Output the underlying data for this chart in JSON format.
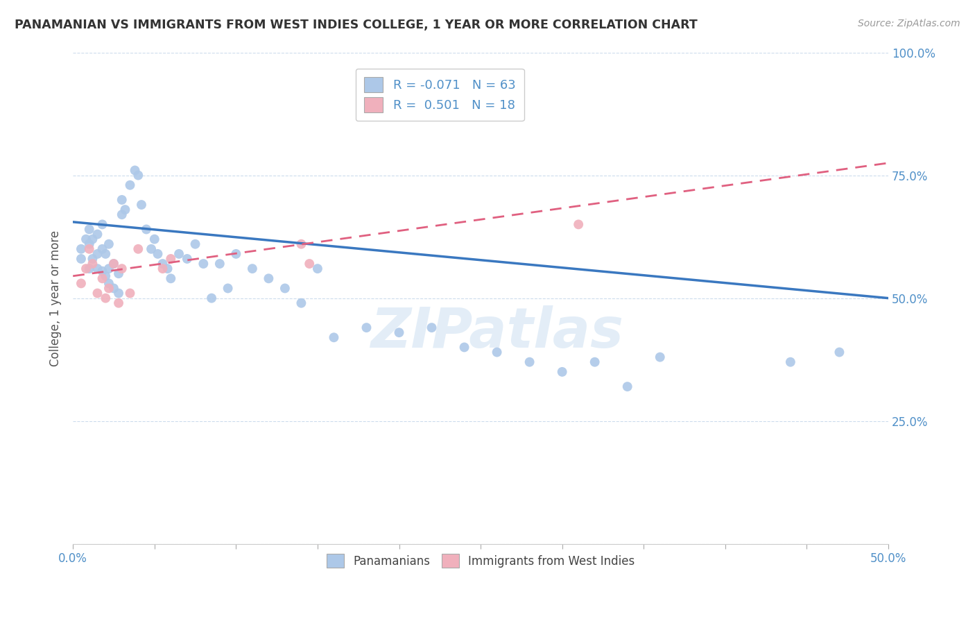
{
  "title": "PANAMANIAN VS IMMIGRANTS FROM WEST INDIES COLLEGE, 1 YEAR OR MORE CORRELATION CHART",
  "source_text": "Source: ZipAtlas.com",
  "ylabel": "College, 1 year or more",
  "xlim": [
    0.0,
    0.5
  ],
  "ylim": [
    0.0,
    1.0
  ],
  "ytick_positions": [
    0.0,
    0.25,
    0.5,
    0.75,
    1.0
  ],
  "ytick_labels": [
    "",
    "25.0%",
    "50.0%",
    "75.0%",
    "100.0%"
  ],
  "xtick_positions": [
    0.0,
    0.05,
    0.1,
    0.15,
    0.2,
    0.25,
    0.3,
    0.35,
    0.4,
    0.45,
    0.5
  ],
  "xtick_label_positions": [
    0.0,
    0.5
  ],
  "xtick_label_texts": [
    "0.0%",
    "50.0%"
  ],
  "blue_dot_color": "#adc8e8",
  "pink_dot_color": "#f0b0bc",
  "blue_line_color": "#3a78c0",
  "pink_line_color": "#e06080",
  "label_color": "#5090c8",
  "title_color": "#333333",
  "source_color": "#999999",
  "watermark_text": "ZIPatlas",
  "watermark_color": "#c8ddf0",
  "R_blue": -0.071,
  "N_blue": 63,
  "R_pink": 0.501,
  "N_pink": 18,
  "legend_label_blue": "Panamanians",
  "legend_label_pink": "Immigrants from West Indies",
  "blue_line_x0": 0.0,
  "blue_line_y0": 0.655,
  "blue_line_x1": 0.5,
  "blue_line_y1": 0.5,
  "pink_line_x0": 0.0,
  "pink_line_y0": 0.545,
  "pink_line_x1": 0.5,
  "pink_line_y1": 0.775,
  "blue_x": [
    0.005,
    0.005,
    0.008,
    0.01,
    0.01,
    0.01,
    0.012,
    0.012,
    0.015,
    0.015,
    0.015,
    0.018,
    0.018,
    0.018,
    0.02,
    0.02,
    0.022,
    0.022,
    0.022,
    0.025,
    0.025,
    0.028,
    0.028,
    0.03,
    0.03,
    0.032,
    0.035,
    0.038,
    0.04,
    0.042,
    0.045,
    0.048,
    0.05,
    0.052,
    0.055,
    0.058,
    0.06,
    0.065,
    0.07,
    0.075,
    0.08,
    0.085,
    0.09,
    0.095,
    0.1,
    0.11,
    0.12,
    0.13,
    0.14,
    0.15,
    0.16,
    0.18,
    0.2,
    0.22,
    0.24,
    0.26,
    0.28,
    0.3,
    0.32,
    0.34,
    0.36,
    0.44,
    0.47
  ],
  "blue_y": [
    0.6,
    0.58,
    0.62,
    0.56,
    0.61,
    0.64,
    0.58,
    0.62,
    0.56,
    0.59,
    0.63,
    0.555,
    0.6,
    0.65,
    0.545,
    0.59,
    0.53,
    0.56,
    0.61,
    0.52,
    0.57,
    0.51,
    0.55,
    0.67,
    0.7,
    0.68,
    0.73,
    0.76,
    0.75,
    0.69,
    0.64,
    0.6,
    0.62,
    0.59,
    0.57,
    0.56,
    0.54,
    0.59,
    0.58,
    0.61,
    0.57,
    0.5,
    0.57,
    0.52,
    0.59,
    0.56,
    0.54,
    0.52,
    0.49,
    0.56,
    0.42,
    0.44,
    0.43,
    0.44,
    0.4,
    0.39,
    0.37,
    0.35,
    0.37,
    0.32,
    0.38,
    0.37,
    0.39
  ],
  "pink_x": [
    0.005,
    0.008,
    0.01,
    0.012,
    0.015,
    0.018,
    0.02,
    0.022,
    0.025,
    0.028,
    0.03,
    0.035,
    0.04,
    0.055,
    0.06,
    0.14,
    0.145,
    0.31
  ],
  "pink_y": [
    0.53,
    0.56,
    0.6,
    0.57,
    0.51,
    0.54,
    0.5,
    0.52,
    0.57,
    0.49,
    0.56,
    0.51,
    0.6,
    0.56,
    0.58,
    0.61,
    0.57,
    0.65
  ],
  "figsize": [
    14.06,
    8.92
  ],
  "dpi": 100
}
